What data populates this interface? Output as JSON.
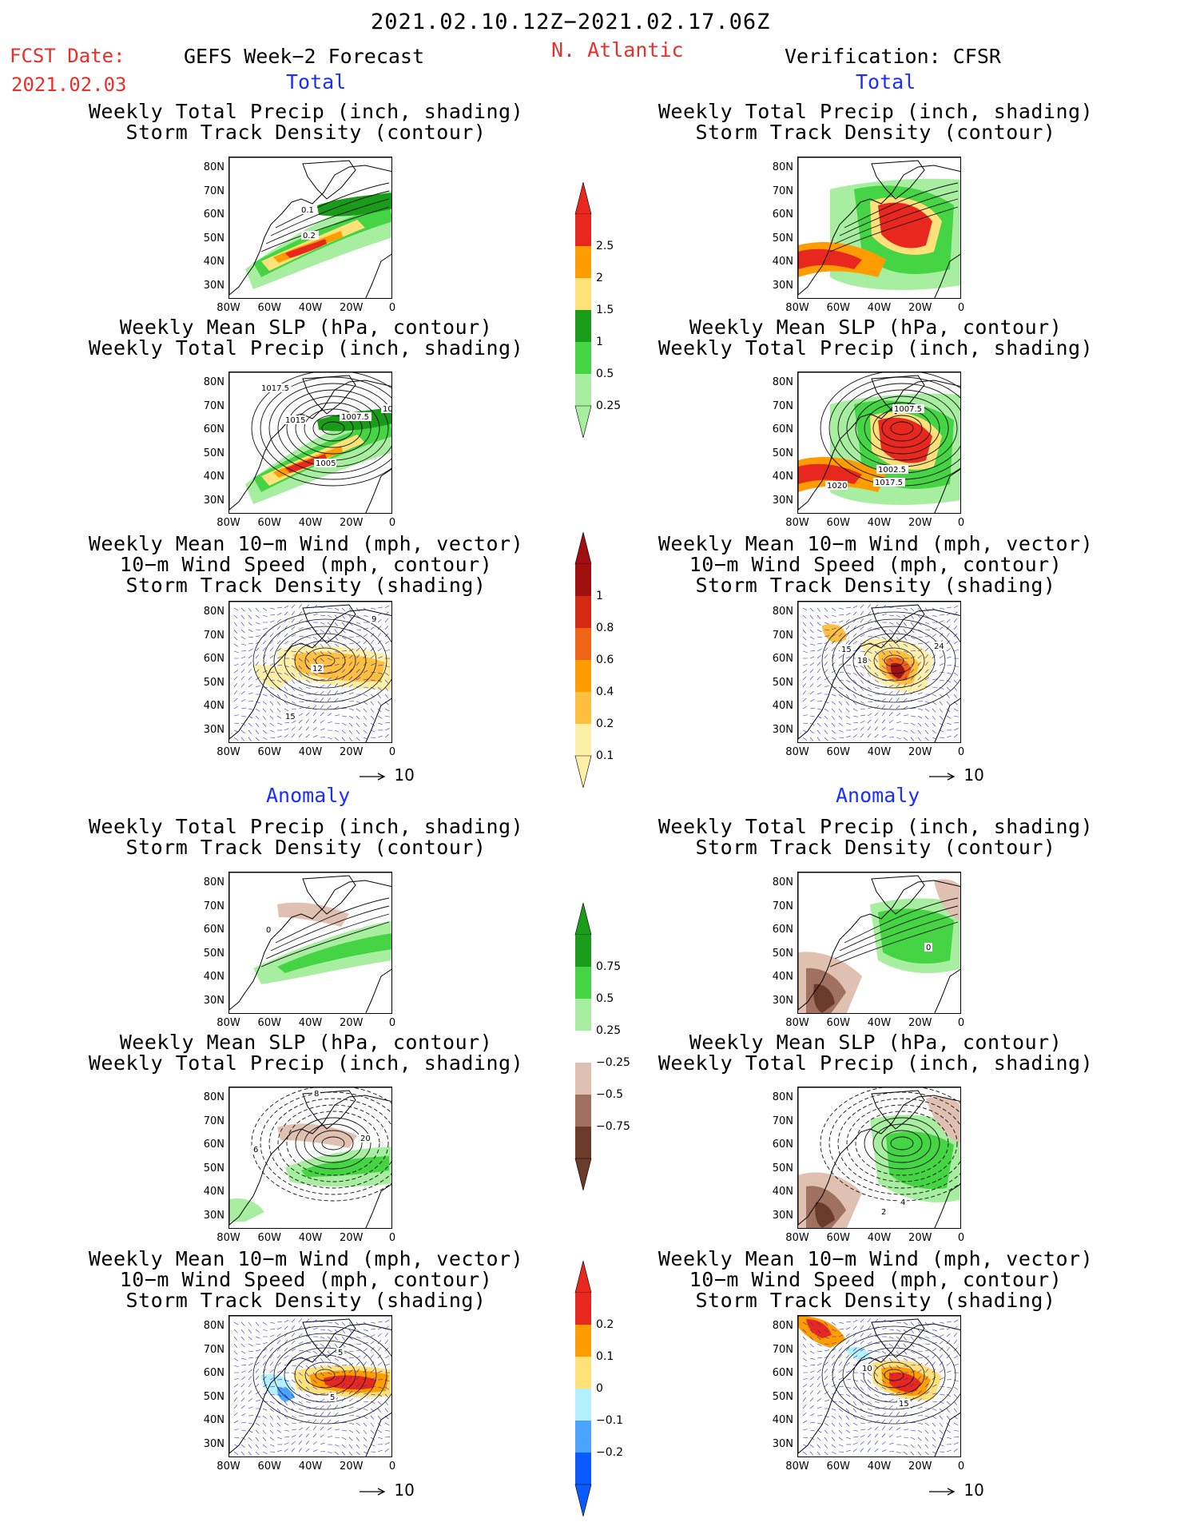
{
  "header": {
    "date_range": "2021.02.10.12Z−2021.02.17.06Z",
    "fcst_label": "FCST Date:",
    "fcst_date": "2021.02.03",
    "left_title": "GEFS Week−2 Forecast",
    "region": "N. Atlantic",
    "right_title": "Verification: CFSR"
  },
  "sections": {
    "total": "Total",
    "anomaly": "Anomaly"
  },
  "titles": {
    "precip_track": [
      "Weekly Total Precip (inch, shading)",
      "Storm Track Density (contour)"
    ],
    "slp_precip": [
      "Weekly Mean SLP (hPa, contour)",
      "Weekly Total Precip (inch, shading)"
    ],
    "wind_track": [
      "Weekly Mean 10−m Wind (mph, vector)",
      "10−m Wind Speed (mph, contour)",
      "Storm Track Density (shading)"
    ]
  },
  "axes": {
    "lat": [
      "80N",
      "70N",
      "60N",
      "50N",
      "40N",
      "30N"
    ],
    "lon": [
      "80W",
      "60W",
      "40W",
      "20W",
      "0"
    ]
  },
  "reference_vector": "10",
  "colorbars": {
    "total_precip": {
      "labels": [
        "2.5",
        "2",
        "1.5",
        "1",
        "0.5",
        "0.25"
      ],
      "colors": [
        "#e8281e",
        "#ff9c00",
        "#ffe17a",
        "#1a9c1a",
        "#44d444",
        "#a8eea0"
      ]
    },
    "total_track": {
      "labels": [
        "1",
        "0.8",
        "0.6",
        "0.4",
        "0.2",
        "0.1"
      ],
      "colors": [
        "#a01010",
        "#d42a14",
        "#f06418",
        "#ff9c00",
        "#ffc040",
        "#fff0a8"
      ]
    },
    "anom_precip": {
      "labels": [
        "0.75",
        "0.5",
        "0.25",
        "−0.25",
        "−0.5",
        "−0.75"
      ],
      "colors": [
        "#1a9c1a",
        "#44d444",
        "#a8eea0",
        "#ffffff",
        "#e0c0b0",
        "#a07060",
        "#6a3a2a"
      ]
    },
    "anom_track": {
      "labels": [
        "0.2",
        "0.1",
        "0",
        "−0.1",
        "−0.2"
      ],
      "colors": [
        "#e8281e",
        "#ff9c00",
        "#ffe17a",
        "#b4f0ff",
        "#4aa4ff",
        "#0a5aff"
      ]
    }
  },
  "contour_labels": {
    "gefs_total_precip": [
      "0.1",
      "0.2"
    ],
    "gefs_total_slp": [
      "1017.5",
      "1015",
      "1007.5",
      "1005",
      "101"
    ],
    "gefs_total_wind": [
      "9",
      "12",
      "15"
    ],
    "cfsr_total_slp": [
      "1007.5",
      "1002.5",
      "1020",
      "1017.5"
    ],
    "cfsr_total_wind": [
      "15",
      "18",
      "24"
    ],
    "gefs_anom_precip": [
      "0"
    ],
    "cfsr_anom_precip": [
      "0"
    ],
    "gefs_anom_slp": [
      "8",
      "6",
      "20"
    ],
    "cfsr_anom_slp": [
      "2",
      "4"
    ],
    "gefs_anom_wind": [
      "5",
      "5"
    ],
    "cfsr_anom_wind": [
      "10",
      "15"
    ]
  }
}
